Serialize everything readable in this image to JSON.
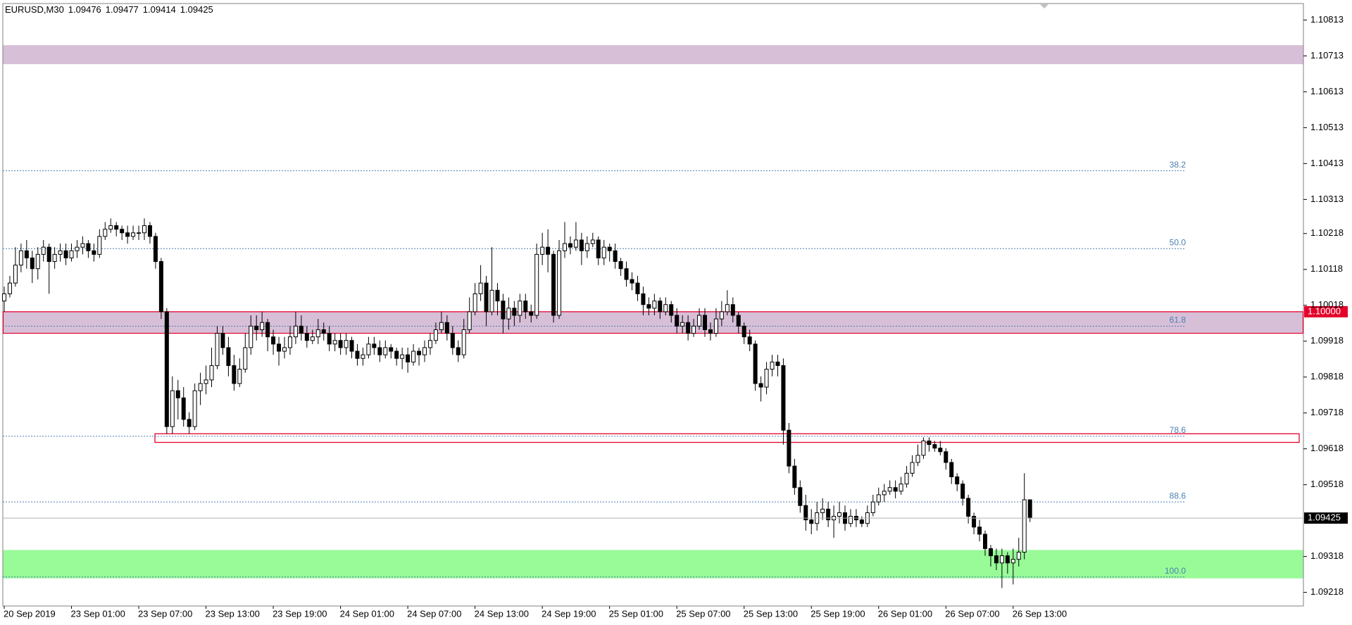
{
  "chart_data": {
    "type": "candlestick",
    "symbol": "EURUSD,M30",
    "categories": [
      "20 Sep 2019",
      null,
      null,
      null,
      null,
      null,
      null,
      null,
      null,
      null,
      null,
      null,
      "23 Sep 01:00",
      null,
      null,
      null,
      null,
      null,
      null,
      null,
      null,
      null,
      null,
      null,
      "23 Sep 07:00",
      null,
      null,
      null,
      null,
      null,
      null,
      null,
      null,
      null,
      null,
      null,
      "23 Sep 13:00",
      null,
      null,
      null,
      null,
      null,
      null,
      null,
      null,
      null,
      null,
      null,
      "23 Sep 19:00",
      null,
      null,
      null,
      null,
      null,
      null,
      null,
      null,
      null,
      null,
      null,
      "24 Sep 01:00",
      null,
      null,
      null,
      null,
      null,
      null,
      null,
      null,
      null,
      null,
      null,
      "24 Sep 07:00",
      null,
      null,
      null,
      null,
      null,
      null,
      null,
      null,
      null,
      null,
      null,
      "24 Sep 13:00",
      null,
      null,
      null,
      null,
      null,
      null,
      null,
      null,
      null,
      null,
      null,
      "24 Sep 19:00",
      null,
      null,
      null,
      null,
      null,
      null,
      null,
      null,
      null,
      null,
      null,
      "25 Sep 01:00",
      null,
      null,
      null,
      null,
      null,
      null,
      null,
      null,
      null,
      null,
      null,
      "25 Sep 07:00",
      null,
      null,
      null,
      null,
      null,
      null,
      null,
      null,
      null,
      null,
      null,
      "25 Sep 13:00",
      null,
      null,
      null,
      null,
      null,
      null,
      null,
      null,
      null,
      null,
      null,
      "25 Sep 19:00",
      null,
      null,
      null,
      null,
      null,
      null,
      null,
      null,
      null,
      null,
      null,
      "26 Sep 01:00",
      null,
      null,
      null,
      null,
      null,
      null,
      null,
      null,
      null,
      null,
      null,
      "26 Sep 07:00",
      null,
      null,
      null,
      null,
      null,
      null,
      null,
      null,
      null,
      null,
      null,
      "26 Sep 13:00",
      null,
      null,
      null
    ],
    "ohlc": [
      [
        1.1003,
        1.1007,
        1.1,
        1.1005
      ],
      [
        1.1005,
        1.101,
        1.1004,
        1.1008
      ],
      [
        1.1008,
        1.1018,
        1.1007,
        1.1013
      ],
      [
        1.1013,
        1.1019,
        1.1011,
        1.1017
      ],
      [
        1.1017,
        1.102,
        1.1012,
        1.1015
      ],
      [
        1.1015,
        1.1017,
        1.1008,
        1.1012
      ],
      [
        1.1012,
        1.1018,
        1.1009,
        1.1016
      ],
      [
        1.1016,
        1.102,
        1.1014,
        1.1018
      ],
      [
        1.1018,
        1.1019,
        1.1005,
        1.1014
      ],
      [
        1.1014,
        1.1018,
        1.1012,
        1.1016
      ],
      [
        1.1016,
        1.1019,
        1.1014,
        1.1017
      ],
      [
        1.1017,
        1.1019,
        1.1013,
        1.1015
      ],
      [
        1.1015,
        1.1019,
        1.1014,
        1.1017
      ],
      [
        1.1017,
        1.102,
        1.1015,
        1.1018
      ],
      [
        1.1018,
        1.1021,
        1.1016,
        1.1019
      ],
      [
        1.1019,
        1.102,
        1.1015,
        1.1017
      ],
      [
        1.1017,
        1.1019,
        1.1014,
        1.1016
      ],
      [
        1.1016,
        1.1023,
        1.1015,
        1.1021
      ],
      [
        1.1021,
        1.1025,
        1.102,
        1.1023
      ],
      [
        1.1023,
        1.1026,
        1.1022,
        1.1024
      ],
      [
        1.1024,
        1.1025,
        1.1021,
        1.1023
      ],
      [
        1.1023,
        1.1024,
        1.102,
        1.1022
      ],
      [
        1.1022,
        1.1024,
        1.1019,
        1.1021
      ],
      [
        1.1021,
        1.1024,
        1.102,
        1.1022
      ],
      [
        1.1022,
        1.1024,
        1.102,
        1.1022
      ],
      [
        1.1022,
        1.1026,
        1.102,
        1.1024
      ],
      [
        1.1024,
        1.1025,
        1.1019,
        1.1021
      ],
      [
        1.1021,
        1.1022,
        1.1012,
        1.1014
      ],
      [
        1.1014,
        1.1015,
        1.0998,
        1.1
      ],
      [
        1.1,
        1.1001,
        1.0966,
        1.0968
      ],
      [
        1.0968,
        1.0982,
        1.0966,
        1.0978
      ],
      [
        1.0978,
        1.0981,
        1.097,
        1.0976
      ],
      [
        1.0976,
        1.0979,
        1.0968,
        1.097
      ],
      [
        1.097,
        1.0972,
        1.0966,
        1.0968
      ],
      [
        1.0968,
        1.098,
        1.0967,
        1.0978
      ],
      [
        1.0978,
        1.0983,
        1.0974,
        1.098
      ],
      [
        1.098,
        1.0985,
        1.0977,
        1.0981
      ],
      [
        1.0981,
        1.099,
        1.0979,
        1.0985
      ],
      [
        1.0985,
        1.0996,
        1.0984,
        1.0994
      ],
      [
        1.0994,
        1.0996,
        1.0988,
        1.099
      ],
      [
        1.099,
        1.0993,
        1.0982,
        1.0985
      ],
      [
        1.0985,
        1.0988,
        1.0978,
        1.098
      ],
      [
        1.098,
        1.0987,
        1.0979,
        1.0984
      ],
      [
        1.0984,
        1.0994,
        1.0983,
        1.099
      ],
      [
        1.099,
        1.0999,
        1.0988,
        1.0996
      ],
      [
        1.0996,
        1.0999,
        1.0992,
        1.0995
      ],
      [
        1.0995,
        1.1,
        1.0993,
        1.0997
      ],
      [
        1.0997,
        1.0998,
        1.0989,
        1.0993
      ],
      [
        1.0993,
        1.0995,
        1.0988,
        1.0991
      ],
      [
        1.0991,
        1.0993,
        1.0985,
        1.0989
      ],
      [
        1.0989,
        1.0993,
        1.0987,
        1.099
      ],
      [
        1.099,
        1.0996,
        1.0988,
        1.0993
      ],
      [
        1.0993,
        1.1,
        1.0991,
        1.0996
      ],
      [
        1.0996,
        1.0999,
        1.0992,
        1.0994
      ],
      [
        1.0994,
        1.0996,
        1.099,
        1.0992
      ],
      [
        1.0992,
        1.0995,
        1.0991,
        1.0993
      ],
      [
        1.0993,
        1.0998,
        1.0991,
        1.0995
      ],
      [
        1.0995,
        1.0997,
        1.0992,
        1.0994
      ],
      [
        1.0994,
        1.0996,
        1.0989,
        1.0991
      ],
      [
        1.0991,
        1.0994,
        1.0989,
        1.0992
      ],
      [
        1.0992,
        1.0994,
        1.0988,
        1.099
      ],
      [
        1.099,
        1.0994,
        1.0988,
        1.0992
      ],
      [
        1.0992,
        1.0993,
        1.0987,
        1.0989
      ],
      [
        1.0989,
        1.0991,
        1.0985,
        1.0987
      ],
      [
        1.0987,
        1.099,
        1.0985,
        1.0988
      ],
      [
        1.0988,
        1.0993,
        1.0987,
        1.0991
      ],
      [
        1.0991,
        1.0993,
        1.0988,
        1.099
      ],
      [
        1.099,
        1.0992,
        1.0986,
        1.0988
      ],
      [
        1.0988,
        1.0992,
        1.0987,
        1.099
      ],
      [
        1.099,
        1.0991,
        1.0987,
        1.0989
      ],
      [
        1.0989,
        1.099,
        1.0985,
        1.0987
      ],
      [
        1.0987,
        1.099,
        1.0984,
        1.0988
      ],
      [
        1.0988,
        1.099,
        1.0983,
        1.0986
      ],
      [
        1.0986,
        1.0991,
        1.0985,
        1.0989
      ],
      [
        1.0989,
        1.099,
        1.0985,
        1.0988
      ],
      [
        1.0988,
        1.0992,
        1.0986,
        1.099
      ],
      [
        1.099,
        1.0994,
        1.0988,
        1.0992
      ],
      [
        1.0992,
        1.0997,
        1.0991,
        1.0995
      ],
      [
        1.0995,
        1.1,
        1.0994,
        1.0997
      ],
      [
        1.0997,
        1.0999,
        1.0992,
        1.0994
      ],
      [
        1.0994,
        1.0996,
        1.0988,
        1.099
      ],
      [
        1.099,
        1.0992,
        1.0986,
        1.0988
      ],
      [
        1.0988,
        1.0998,
        1.0987,
        1.0995
      ],
      [
        1.0995,
        1.1004,
        1.0994,
        1.1
      ],
      [
        1.1,
        1.1008,
        1.0999,
        1.1005
      ],
      [
        1.1005,
        1.1013,
        1.1003,
        1.1008
      ],
      [
        1.1008,
        1.101,
        1.0996,
        1.1
      ],
      [
        1.1,
        1.1018,
        1.0999,
        1.1006
      ],
      [
        1.1006,
        1.1008,
        1.0999,
        1.1003
      ],
      [
        1.1003,
        1.1005,
        1.0994,
        1.0998
      ],
      [
        1.0998,
        1.1004,
        1.0995,
        1.1001
      ],
      [
        1.1001,
        1.1003,
        1.0996,
        1.0999
      ],
      [
        1.0999,
        1.1005,
        1.0997,
        1.1003
      ],
      [
        1.1003,
        1.1005,
        1.0998,
        1.1
      ],
      [
        1.1,
        1.1002,
        1.0997,
        1.0999
      ],
      [
        1.0999,
        1.1019,
        1.0998,
        1.1016
      ],
      [
        1.1016,
        1.1022,
        1.1013,
        1.1018
      ],
      [
        1.1018,
        1.1023,
        1.1011,
        1.1016
      ],
      [
        1.1016,
        1.1017,
        1.0997,
        1.0999
      ],
      [
        1.0999,
        1.102,
        1.0998,
        1.1017
      ],
      [
        1.1017,
        1.1025,
        1.1015,
        1.1019
      ],
      [
        1.1019,
        1.1021,
        1.1016,
        1.1018
      ],
      [
        1.1018,
        1.1025,
        1.1017,
        1.102
      ],
      [
        1.102,
        1.1022,
        1.1013,
        1.1017
      ],
      [
        1.1017,
        1.1021,
        1.1015,
        1.1019
      ],
      [
        1.1019,
        1.1022,
        1.1018,
        1.102
      ],
      [
        1.102,
        1.1021,
        1.1013,
        1.1015
      ],
      [
        1.1015,
        1.102,
        1.1013,
        1.1018
      ],
      [
        1.1018,
        1.1019,
        1.1014,
        1.1017
      ],
      [
        1.1017,
        1.1019,
        1.1012,
        1.1014
      ],
      [
        1.1014,
        1.1015,
        1.101,
        1.1012
      ],
      [
        1.1012,
        1.1014,
        1.1007,
        1.1009
      ],
      [
        1.1009,
        1.1011,
        1.1006,
        1.1008
      ],
      [
        1.1008,
        1.101,
        1.1003,
        1.1005
      ],
      [
        1.1005,
        1.1007,
        1.0999,
        1.1002
      ],
      [
        1.1002,
        1.1004,
        1.0999,
        1.1001
      ],
      [
        1.1001,
        1.1005,
        1.0999,
        1.1003
      ],
      [
        1.1003,
        1.1004,
        1.0998,
        1.1
      ],
      [
        1.1,
        1.1004,
        1.0999,
        1.1002
      ],
      [
        1.1002,
        1.1003,
        1.0997,
        1.0999
      ],
      [
        1.0999,
        1.1001,
        1.0994,
        1.0996
      ],
      [
        1.0996,
        1.0999,
        1.0994,
        1.0997
      ],
      [
        1.0997,
        1.0999,
        1.0992,
        1.0994
      ],
      [
        1.0994,
        1.0998,
        1.0993,
        1.0996
      ],
      [
        1.0996,
        1.1001,
        1.0995,
        1.0999
      ],
      [
        1.0999,
        1.1001,
        1.0993,
        1.0995
      ],
      [
        1.0995,
        1.0997,
        1.0992,
        1.0994
      ],
      [
        1.0994,
        1.1001,
        1.0993,
        1.0998
      ],
      [
        1.0998,
        1.1003,
        1.0996,
        1.1
      ],
      [
        1.1,
        1.1006,
        1.0999,
        1.1002
      ],
      [
        1.1002,
        1.1004,
        1.0997,
        1.0999
      ],
      [
        1.0999,
        1.1,
        1.0994,
        1.0996
      ],
      [
        1.0996,
        1.0997,
        1.0991,
        1.0993
      ],
      [
        1.0993,
        1.0995,
        1.0989,
        1.0991
      ],
      [
        1.0991,
        1.0992,
        1.0978,
        1.098
      ],
      [
        1.098,
        1.0982,
        1.0975,
        1.0979
      ],
      [
        1.0979,
        1.0986,
        1.0977,
        1.0984
      ],
      [
        1.0984,
        1.0988,
        1.0982,
        1.0986
      ],
      [
        1.0986,
        1.0988,
        1.0982,
        1.0985
      ],
      [
        1.0985,
        1.0987,
        1.0963,
        1.0967
      ],
      [
        1.0967,
        1.0969,
        1.0955,
        1.0957
      ],
      [
        1.0957,
        1.0959,
        1.0949,
        1.0951
      ],
      [
        1.0951,
        1.0953,
        1.0944,
        1.0946
      ],
      [
        1.0946,
        1.0949,
        1.0939,
        1.0942
      ],
      [
        1.0942,
        1.0945,
        1.0938,
        1.0941
      ],
      [
        1.0941,
        1.0947,
        1.0939,
        1.0944
      ],
      [
        1.0944,
        1.0948,
        1.0942,
        1.0945
      ],
      [
        1.0945,
        1.0947,
        1.094,
        1.0942
      ],
      [
        1.0942,
        1.0946,
        1.0937,
        1.0943
      ],
      [
        1.0943,
        1.0947,
        1.0941,
        1.0944
      ],
      [
        1.0944,
        1.0946,
        1.0939,
        1.0941
      ],
      [
        1.0941,
        1.0945,
        1.094,
        1.0943
      ],
      [
        1.0943,
        1.0945,
        1.094,
        1.0942
      ],
      [
        1.0942,
        1.0943,
        1.094,
        1.0941
      ],
      [
        1.0941,
        1.0946,
        1.094,
        1.0944
      ],
      [
        1.0944,
        1.0949,
        1.0943,
        1.0947
      ],
      [
        1.0947,
        1.0951,
        1.0946,
        1.0949
      ],
      [
        1.0949,
        1.0952,
        1.0947,
        1.095
      ],
      [
        1.095,
        1.0953,
        1.0949,
        1.0951
      ],
      [
        1.0951,
        1.0953,
        1.0948,
        1.095
      ],
      [
        1.095,
        1.0954,
        1.0949,
        1.0952
      ],
      [
        1.0952,
        1.0957,
        1.0951,
        1.0955
      ],
      [
        1.0955,
        1.096,
        1.0954,
        1.0958
      ],
      [
        1.0958,
        1.0963,
        1.0957,
        1.096
      ],
      [
        1.096,
        1.0965,
        1.0959,
        1.0964
      ],
      [
        1.0964,
        1.0965,
        1.0961,
        1.0963
      ],
      [
        1.0963,
        1.0964,
        1.0961,
        1.0962
      ],
      [
        1.0962,
        1.0964,
        1.096,
        1.0961
      ],
      [
        1.0961,
        1.0962,
        1.0956,
        1.0958
      ],
      [
        1.0958,
        1.0959,
        1.0952,
        1.0954
      ],
      [
        1.0954,
        1.0955,
        1.095,
        1.0952
      ],
      [
        1.0952,
        1.0953,
        1.0946,
        1.0948
      ],
      [
        1.0948,
        1.0949,
        1.0941,
        1.0943
      ],
      [
        1.0943,
        1.0944,
        1.0938,
        1.094
      ],
      [
        1.094,
        1.0942,
        1.0936,
        1.0938
      ],
      [
        1.0938,
        1.0939,
        1.0932,
        1.0934
      ],
      [
        1.0934,
        1.0935,
        1.0929,
        1.0932
      ],
      [
        1.0932,
        1.0934,
        1.0928,
        1.093
      ],
      [
        1.093,
        1.0934,
        1.0923,
        1.0932
      ],
      [
        1.0932,
        1.0933,
        1.0927,
        1.093
      ],
      [
        1.093,
        1.0934,
        1.0924,
        1.0931
      ],
      [
        1.0931,
        1.0937,
        1.0929,
        1.0933
      ],
      [
        1.0933,
        1.0955,
        1.0931,
        1.09476
      ],
      [
        1.09476,
        1.09477,
        1.09414,
        1.09425
      ]
    ],
    "ylim": [
      1.0918,
      1.10859
    ],
    "yticks": [
      1.10813,
      1.10713,
      1.10613,
      1.10513,
      1.10413,
      1.10313,
      1.10218,
      1.10118,
      1.10018,
      1.09918,
      1.09818,
      1.09718,
      1.09618,
      1.09518,
      1.09318,
      1.09218
    ],
    "bull_color": "#ffffff",
    "bear_color": "#000000",
    "zones": [
      {
        "ymin": 1.1069,
        "ymax": 1.10743,
        "color": "#d8bfd8"
      },
      {
        "ymin": 1.0994,
        "ymax": 1.1,
        "color": "#d8bfd8",
        "border": "#e4002b"
      },
      {
        "ymin": 1.09257,
        "ymax": 1.09336,
        "color": "#98fb98"
      }
    ],
    "boxes": [
      {
        "ymin": 1.09636,
        "ymax": 1.0966,
        "border": "#e4002b"
      }
    ],
    "fib_levels": [
      {
        "label": "38.2",
        "value": 1.10393
      },
      {
        "label": "50.0",
        "value": 1.10176
      },
      {
        "label": "61.8",
        "value": 1.0996
      },
      {
        "label": "78.6",
        "value": 1.09653
      },
      {
        "label": "88.6",
        "value": 1.0947
      },
      {
        "label": "100.0",
        "value": 1.09261
      }
    ],
    "fib_color": "#4a7fb0",
    "hlines": [
      {
        "value": 1.1,
        "label": "1.10000",
        "color": "#e4002b"
      }
    ]
  }
}
